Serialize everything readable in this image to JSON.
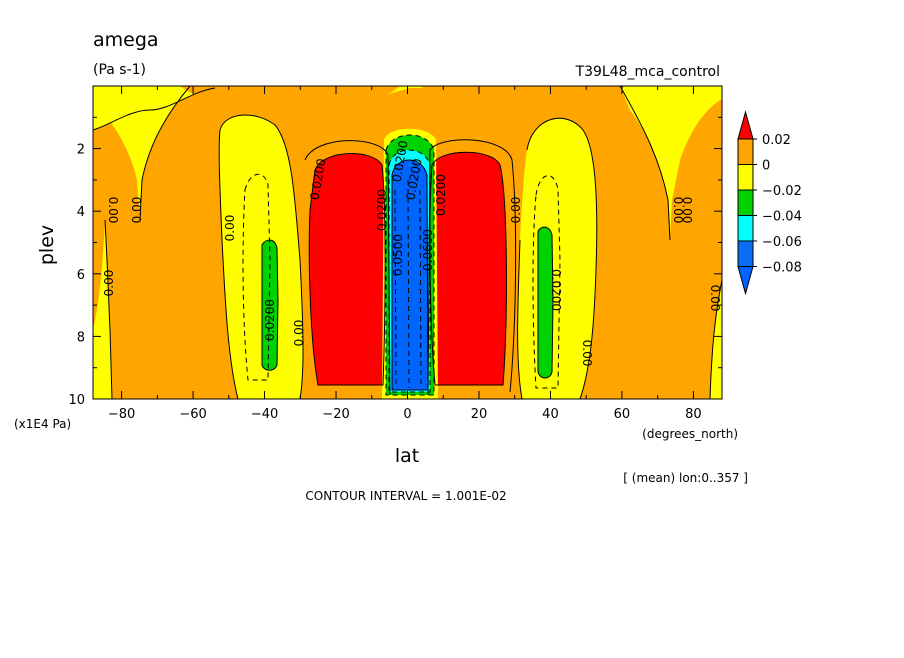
{
  "chart_data": {
    "type": "contour",
    "title": "amega",
    "units": "(Pa s-1)",
    "experiment": "T39L48_mca_control",
    "xlabel": "lat",
    "xunits": "(degrees_north)",
    "ylabel": "plev",
    "yunits": "(x1E4 Pa)",
    "xlim": [
      -88,
      88
    ],
    "ylim": [
      10,
      0
    ],
    "xticks": [
      -80,
      -60,
      -40,
      -20,
      0,
      20,
      40,
      60,
      80
    ],
    "xtick_labels": [
      "−80",
      "−60",
      "−40",
      "−20",
      "0",
      "20",
      "40",
      "60",
      "80"
    ],
    "yticks": [
      2,
      4,
      6,
      8,
      10
    ],
    "ytick_labels": [
      "2",
      "4",
      "6",
      "8",
      "10"
    ],
    "region_note": "[ (mean) lon:0..357 ]",
    "contour_interval_label": "CONTOUR INTERVAL = 1.001E-02",
    "contour_labels": [
      "0.00",
      "0.00",
      "0.00",
      "0.00",
      "0.00",
      "0.00",
      "0.00",
      "0.0200",
      "0.0200",
      "0.0200",
      "0.0200",
      "0.0200",
      "0.0200",
      "0.0500",
      "0.0600",
      "0.0200",
      "0.00",
      "0.00",
      "0.00"
    ],
    "legend": {
      "levels": [
        "0.02",
        "0",
        "−0.02",
        "−0.04",
        "−0.06",
        "−0.08"
      ],
      "colors": [
        "#ff0000",
        "#ffa500",
        "#ffff00",
        "#00d200",
        "#00ffff",
        "#0a6ef5",
        "#0064ff"
      ]
    }
  }
}
